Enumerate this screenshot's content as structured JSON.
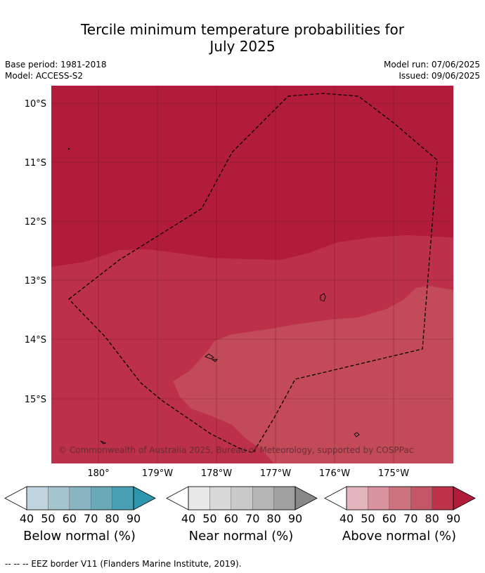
{
  "title": {
    "line1": "Tercile minimum temperature probabilities for",
    "line2": "July 2025"
  },
  "meta": {
    "base_period": "Base period: 1981-2018",
    "model": "Model: ACCESS-S2",
    "model_run": "Model run: 07/06/2025",
    "issued": "Issued: 09/06/2025"
  },
  "map": {
    "lat_labels": [
      "10°S",
      "11°S",
      "12°S",
      "13°S",
      "14°S",
      "15°S"
    ],
    "lon_labels": [
      "180°",
      "179°W",
      "178°W",
      "177°W",
      "176°W",
      "175°W"
    ],
    "copyright": "© Commonwealth of Australia 2025, Bureau of Meteorology, supported by COSPPac",
    "colors": {
      "above_80_90": "#b01c3a",
      "above_70_80": "#bc3049",
      "above_60_70": "#c34a58",
      "grid": "#5a1a26",
      "eez": "#000000"
    }
  },
  "legends": [
    {
      "title": "Below normal (%)",
      "ticks": [
        "40",
        "50",
        "60",
        "70",
        "80",
        "90"
      ],
      "colors": [
        "#ffffff",
        "#bfd4dc",
        "#a5c5ce",
        "#89b5c2",
        "#6aaab8",
        "#48a0b2",
        "#2b96ae"
      ]
    },
    {
      "title": "Near normal (%)",
      "ticks": [
        "40",
        "50",
        "60",
        "70",
        "80",
        "90"
      ],
      "colors": [
        "#ffffff",
        "#e8e8e8",
        "#d8d8d8",
        "#c9c9c9",
        "#b5b5b5",
        "#a0a0a0",
        "#888888"
      ]
    },
    {
      "title": "Above normal (%)",
      "ticks": [
        "40",
        "50",
        "60",
        "70",
        "80",
        "90"
      ],
      "colors": [
        "#ffffff",
        "#e2b5bc",
        "#d8939e",
        "#cc737f",
        "#c45767",
        "#bd3248",
        "#b01c3a"
      ]
    }
  ],
  "footnote": "--  --  -- EEZ border V11 (Flanders Marine Institute, 2019)."
}
